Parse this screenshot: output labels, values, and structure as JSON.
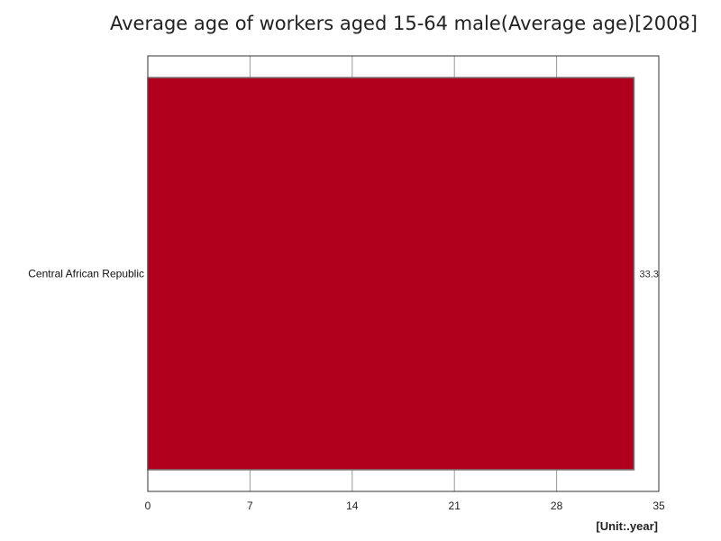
{
  "chart_data": {
    "type": "bar",
    "orientation": "horizontal",
    "title": "Average age of workers aged 15-64 male(Average age)[2008]",
    "unit": "[Unit:.year]",
    "categories": [
      "Central African Republic"
    ],
    "values": [
      33.3
    ],
    "value_labels": [
      "33.3"
    ],
    "xlim": [
      0,
      35
    ],
    "xticks": [
      0,
      7,
      14,
      21,
      28,
      35
    ],
    "grid": true,
    "bar_color": "#b0001e"
  }
}
